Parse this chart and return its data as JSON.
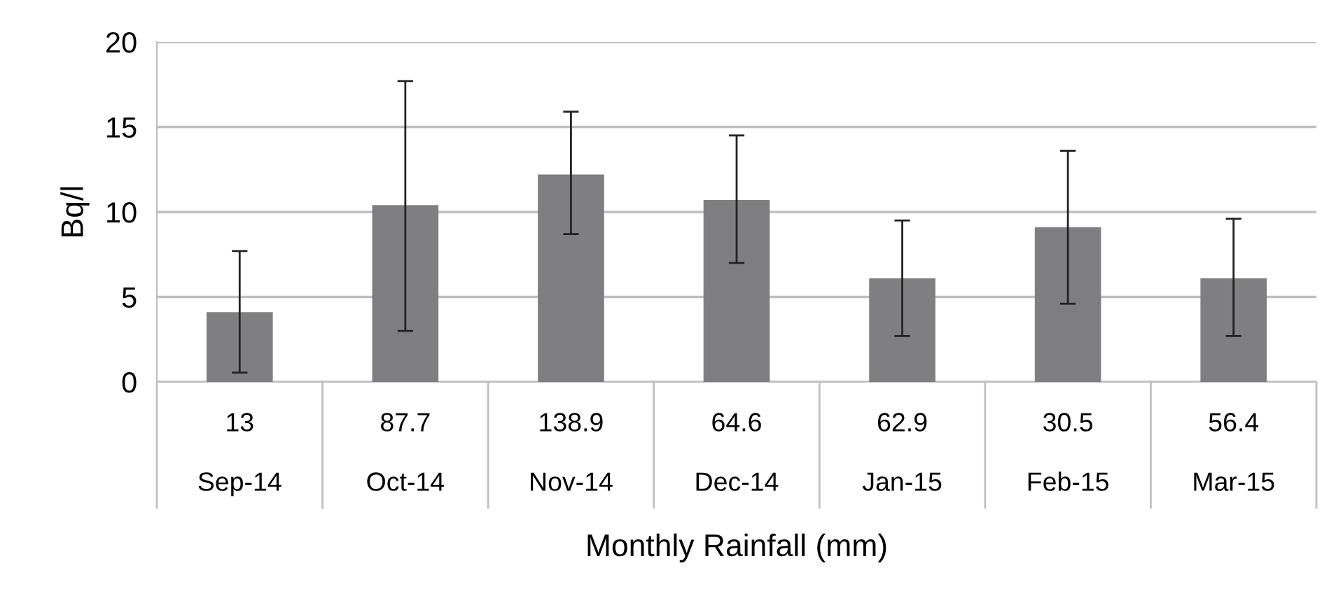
{
  "chart_data": {
    "type": "bar",
    "ylabel": "Bq/l",
    "xlabel": "Monthly Rainfall (mm)",
    "categories": [
      "13\nSep-14",
      "87.7\nOct-14",
      "138.9\nNov-14",
      "64.6\nDec-14",
      "62.9\nJan-15",
      "30.5\nFeb-15",
      "56.4\nMar-15"
    ],
    "values": [
      4.1,
      10.4,
      12.2,
      10.7,
      6.1,
      9.1,
      6.1
    ],
    "errors": [
      [
        0.55,
        7.7
      ],
      [
        3.0,
        17.7
      ],
      [
        8.7,
        15.9
      ],
      [
        7.0,
        14.5
      ],
      [
        2.7,
        9.5
      ],
      [
        4.6,
        13.6
      ],
      [
        2.7,
        9.6
      ]
    ],
    "color": "#7f7f82",
    "ylim": [
      0,
      20
    ],
    "yticks": [
      0,
      5,
      10,
      15,
      20
    ],
    "grid": "y"
  }
}
